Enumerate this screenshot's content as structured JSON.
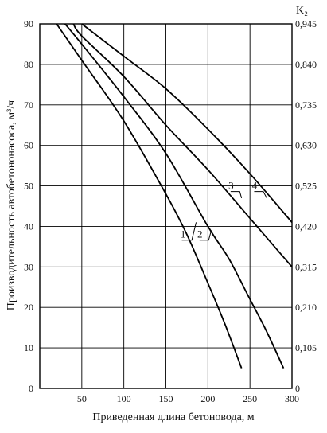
{
  "chart_data": {
    "type": "line",
    "xlabel": "Приведенная длина бетоновода, м",
    "ylabel": "Производительность автобетононасоса, м³/ч",
    "y2label": "K₂",
    "xlim": [
      0,
      300
    ],
    "ylim": [
      0,
      90
    ],
    "y2lim": [
      0,
      0.945
    ],
    "grid": true,
    "x_ticks": [
      "50",
      "100",
      "150",
      "200",
      "250",
      "300"
    ],
    "y_ticks": [
      "0",
      "10",
      "20",
      "30",
      "40",
      "50",
      "60",
      "70",
      "80",
      "90"
    ],
    "y2_ticks": [
      "0",
      "0,105",
      "0,210",
      "0,315",
      "0,420",
      "0,525",
      "0,630",
      "0,735",
      "0,840",
      "0,945"
    ],
    "series": [
      {
        "name": "1",
        "x": [
          20,
          50,
          100,
          150,
          175,
          200,
          220,
          240
        ],
        "y": [
          90,
          81,
          66,
          48,
          38,
          26,
          16,
          5
        ]
      },
      {
        "name": "2",
        "x": [
          30,
          50,
          100,
          150,
          200,
          225,
          250,
          270,
          290
        ],
        "y": [
          90,
          85,
          72,
          58,
          40,
          32,
          22,
          14,
          5
        ]
      },
      {
        "name": "3",
        "x": [
          40,
          50,
          100,
          150,
          200,
          250,
          300
        ],
        "y": [
          90,
          87,
          77,
          65,
          54,
          42,
          30
        ]
      },
      {
        "name": "4",
        "x": [
          50,
          100,
          150,
          200,
          250,
          300
        ],
        "y": [
          90,
          82,
          74,
          64,
          53,
          41
        ]
      }
    ]
  }
}
